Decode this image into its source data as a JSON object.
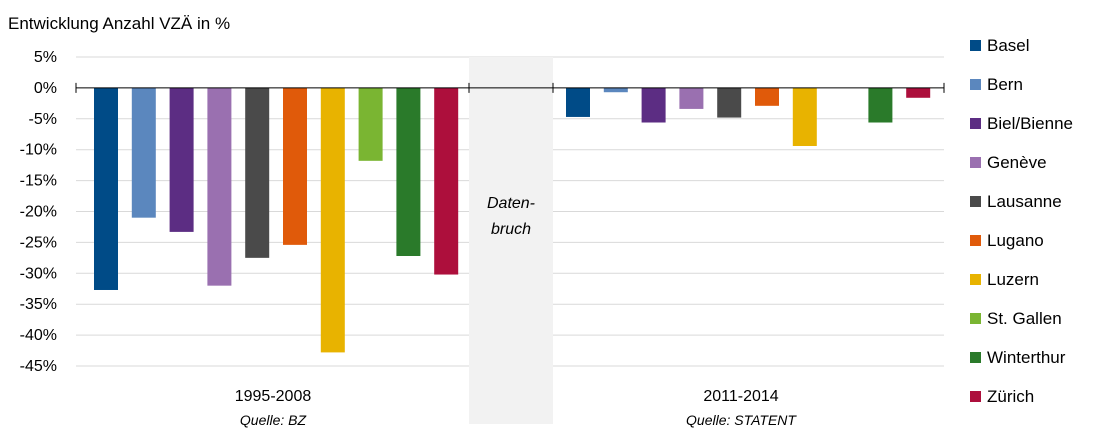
{
  "chart_data": {
    "type": "bar",
    "title": "Entwicklung Anzahl VZÄ in %",
    "ylim": [
      -45,
      5
    ],
    "y_ticks": [
      "5%",
      "0%",
      "-5%",
      "-10%",
      "-15%",
      "-20%",
      "-25%",
      "-30%",
      "-35%",
      "-40%",
      "-45%"
    ],
    "grid": true,
    "legend_position": "right",
    "break_label_1": "Daten-",
    "break_label_2": "bruch",
    "series": [
      {
        "name": "Basel",
        "color": "#004b87"
      },
      {
        "name": "Bern",
        "color": "#5b87be"
      },
      {
        "name": "Biel/Bienne",
        "color": "#5c2d83"
      },
      {
        "name": "Genève",
        "color": "#9a70b0"
      },
      {
        "name": "Lausanne",
        "color": "#4a4a4a"
      },
      {
        "name": "Lugano",
        "color": "#e05a0a"
      },
      {
        "name": "Luzern",
        "color": "#e8b300"
      },
      {
        "name": "St. Gallen",
        "color": "#7ab532"
      },
      {
        "name": "Winterthur",
        "color": "#2a7a2a"
      },
      {
        "name": "Zürich",
        "color": "#ad0f3c"
      }
    ],
    "groups": [
      {
        "label": "1995-2008",
        "source": "Quelle: BZ",
        "values": [
          -32.7,
          -21.0,
          -23.3,
          -32.0,
          -27.5,
          -25.4,
          -42.8,
          -11.8,
          -27.2,
          -30.2
        ]
      },
      {
        "label": "2011-2014",
        "source": "Quelle: STATENT",
        "values": [
          -4.7,
          -0.7,
          -5.6,
          -3.4,
          -4.8,
          -2.9,
          -9.4,
          null,
          -5.6,
          -1.6
        ]
      }
    ]
  }
}
